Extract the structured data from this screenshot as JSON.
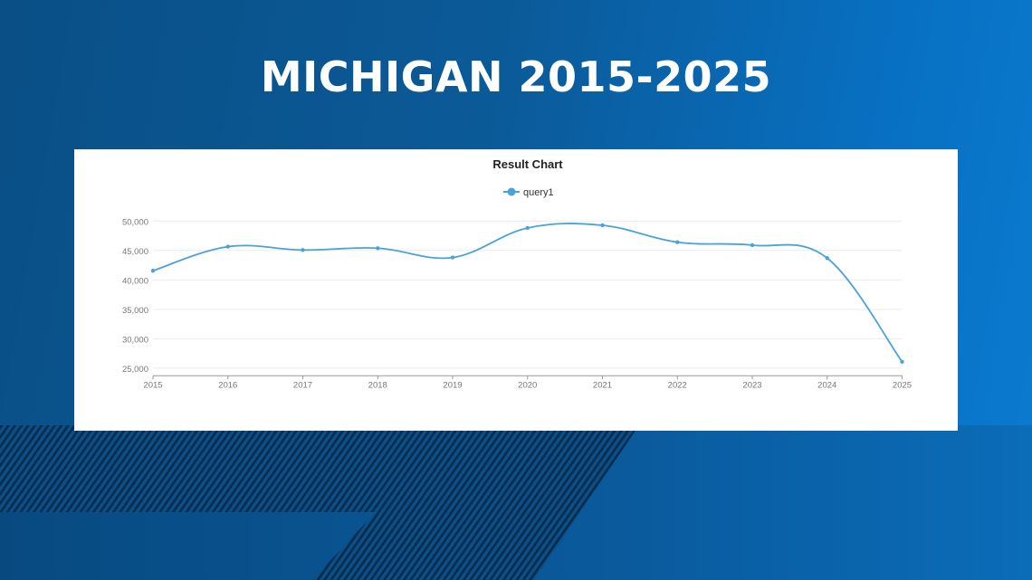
{
  "header": {
    "title": "MICHIGAN 2015-2025"
  },
  "colors": {
    "series": "#4aa3d8",
    "accent_bg": "#0b5a98"
  },
  "chart_data": {
    "type": "line",
    "title": "Result Chart",
    "legend": {
      "entries": [
        "query1"
      ],
      "placement": "top-center"
    },
    "categories": [
      "2015",
      "2016",
      "2017",
      "2018",
      "2019",
      "2020",
      "2021",
      "2022",
      "2023",
      "2024",
      "2025"
    ],
    "series": [
      {
        "name": "query1",
        "values": [
          41550,
          45650,
          45080,
          45390,
          43800,
          48820,
          49280,
          46410,
          45900,
          43700,
          26080
        ]
      }
    ],
    "yticks": [
      25000,
      30000,
      35000,
      40000,
      45000,
      50000
    ],
    "ytick_labels": [
      "25,000",
      "30,000",
      "35,000",
      "40,000",
      "45,000",
      "50,000"
    ],
    "xlabel": "",
    "ylabel": "",
    "ylim": [
      23700,
      50000
    ],
    "grid": true,
    "smooth": true
  }
}
